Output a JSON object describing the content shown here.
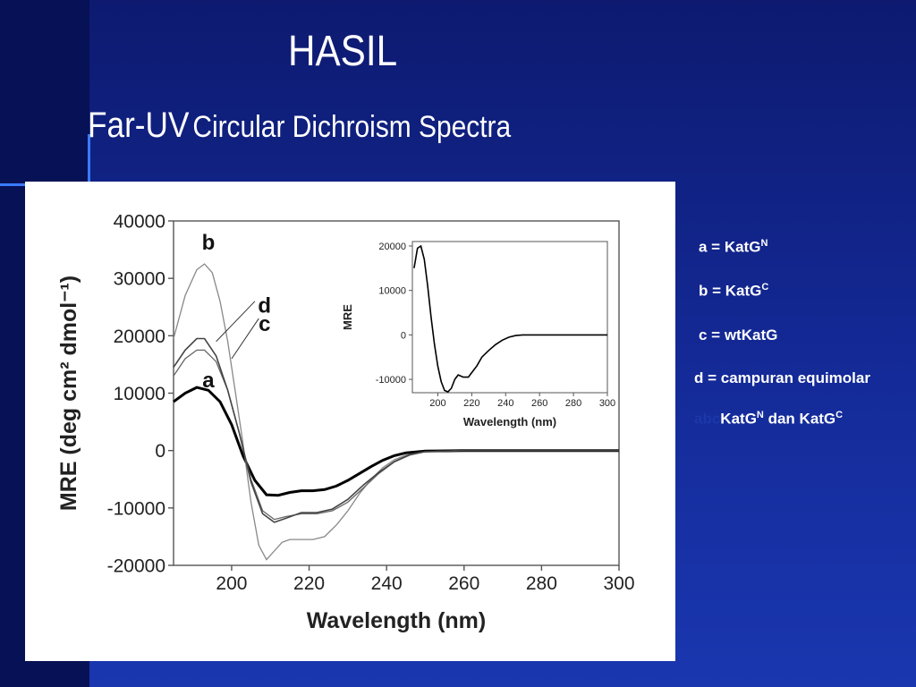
{
  "slide": {
    "title": "HASIL",
    "subtitle_big": "Far-UV",
    "subtitle_small": "Circular Dichroism Spectra"
  },
  "legend": {
    "a_text": "a = KatG",
    "a_sup": "N",
    "b_text": "b = KatG",
    "b_sup": "C",
    "c_text": "c = wtKatG",
    "d_text": "d = campuran equimolar",
    "d2_ghost": "abc",
    "d2_text_1": "KatG",
    "d2_sup_1": "N",
    "d2_text_2": " dan KatG",
    "d2_sup_2": "C"
  },
  "chart_data": [
    {
      "type": "line",
      "title": "",
      "xlabel": "Wavelength (nm)",
      "ylabel": "MRE (deg cm² dmol⁻¹)",
      "xlim": [
        185,
        300
      ],
      "ylim": [
        -20000,
        40000
      ],
      "xticks": [
        200,
        220,
        240,
        260,
        280,
        300
      ],
      "yticks": [
        -20000,
        -10000,
        0,
        10000,
        20000,
        30000,
        40000
      ],
      "xtick_labels": [
        "200",
        "220",
        "240",
        "260",
        "280",
        "300"
      ],
      "ytick_labels": [
        "-20000",
        "-10000",
        "0",
        "10000",
        "20000",
        "30000",
        "40000"
      ],
      "grid": false,
      "series": [
        {
          "name": "a",
          "x": [
            185,
            188,
            191,
            194,
            197,
            200,
            203,
            206,
            209,
            212,
            215,
            218,
            221,
            224,
            227,
            230,
            233,
            236,
            239,
            242,
            245,
            250,
            260,
            270,
            280,
            290,
            300
          ],
          "y": [
            8500,
            10000,
            11000,
            10500,
            8500,
            4500,
            -1000,
            -5200,
            -7700,
            -7800,
            -7300,
            -7000,
            -7000,
            -6800,
            -6200,
            -5200,
            -4000,
            -2800,
            -1700,
            -900,
            -400,
            -100,
            0,
            0,
            0,
            0,
            0
          ]
        },
        {
          "name": "b",
          "x": [
            185,
            188,
            191,
            193,
            195,
            197,
            199,
            201,
            203,
            205,
            207,
            209,
            211,
            213,
            215,
            218,
            221,
            224,
            227,
            230,
            233,
            236,
            239,
            242,
            245,
            250,
            260,
            270,
            280,
            290,
            300
          ],
          "y": [
            19500,
            27000,
            31500,
            32500,
            31000,
            26000,
            19000,
            10000,
            1000,
            -9000,
            -16500,
            -19000,
            -17500,
            -16000,
            -15500,
            -15500,
            -15500,
            -15000,
            -13000,
            -10500,
            -7500,
            -5000,
            -3000,
            -1600,
            -800,
            -200,
            0,
            0,
            0,
            0,
            0
          ]
        },
        {
          "name": "c",
          "x": [
            185,
            188,
            191,
            193,
            196,
            199,
            202,
            205,
            208,
            211,
            214,
            218,
            222,
            226,
            230,
            234,
            238,
            242,
            246,
            250,
            260,
            270,
            280,
            290,
            300
          ],
          "y": [
            13000,
            16000,
            17500,
            17500,
            15500,
            10500,
            3000,
            -5000,
            -10500,
            -12000,
            -11500,
            -11000,
            -11000,
            -10500,
            -9000,
            -6500,
            -4000,
            -2000,
            -800,
            -200,
            0,
            0,
            0,
            0,
            0
          ]
        },
        {
          "name": "d",
          "x": [
            185,
            188,
            191,
            193,
            196,
            199,
            202,
            205,
            208,
            211,
            214,
            218,
            222,
            226,
            230,
            234,
            238,
            242,
            246,
            250,
            260,
            270,
            280,
            290,
            300
          ],
          "y": [
            14500,
            17500,
            19500,
            19500,
            16500,
            10500,
            3000,
            -5500,
            -11000,
            -12500,
            -11800,
            -10800,
            -10800,
            -10200,
            -8500,
            -6000,
            -3800,
            -1900,
            -700,
            -200,
            0,
            0,
            0,
            0,
            0
          ]
        }
      ],
      "annotations": [
        "a",
        "b",
        "c",
        "d"
      ]
    },
    {
      "type": "line",
      "title": "",
      "xlabel": "Wavelength (nm)",
      "ylabel": "MRE",
      "xlim": [
        185,
        300
      ],
      "ylim": [
        -13000,
        21000
      ],
      "xticks": [
        200,
        220,
        240,
        260,
        280,
        300
      ],
      "yticks": [
        -10000,
        0,
        10000,
        20000
      ],
      "xtick_labels": [
        "200",
        "220",
        "240",
        "260",
        "280",
        "300"
      ],
      "ytick_labels": [
        "-10000",
        "0",
        "10000",
        "20000"
      ],
      "grid": false,
      "series": [
        {
          "x": [
            186,
            188,
            190,
            192,
            194,
            196,
            198,
            200,
            202,
            204,
            206,
            208,
            210,
            212,
            215,
            218,
            220,
            223,
            226,
            230,
            234,
            238,
            242,
            246,
            250,
            260,
            270,
            280,
            290,
            300
          ],
          "y": [
            15000,
            19500,
            20000,
            17000,
            11000,
            4000,
            -2000,
            -7000,
            -10500,
            -12500,
            -12800,
            -12000,
            -10000,
            -9000,
            -9500,
            -9500,
            -8500,
            -7000,
            -5000,
            -3500,
            -2200,
            -1200,
            -500,
            -150,
            0,
            0,
            0,
            0,
            0,
            0
          ]
        }
      ]
    }
  ]
}
